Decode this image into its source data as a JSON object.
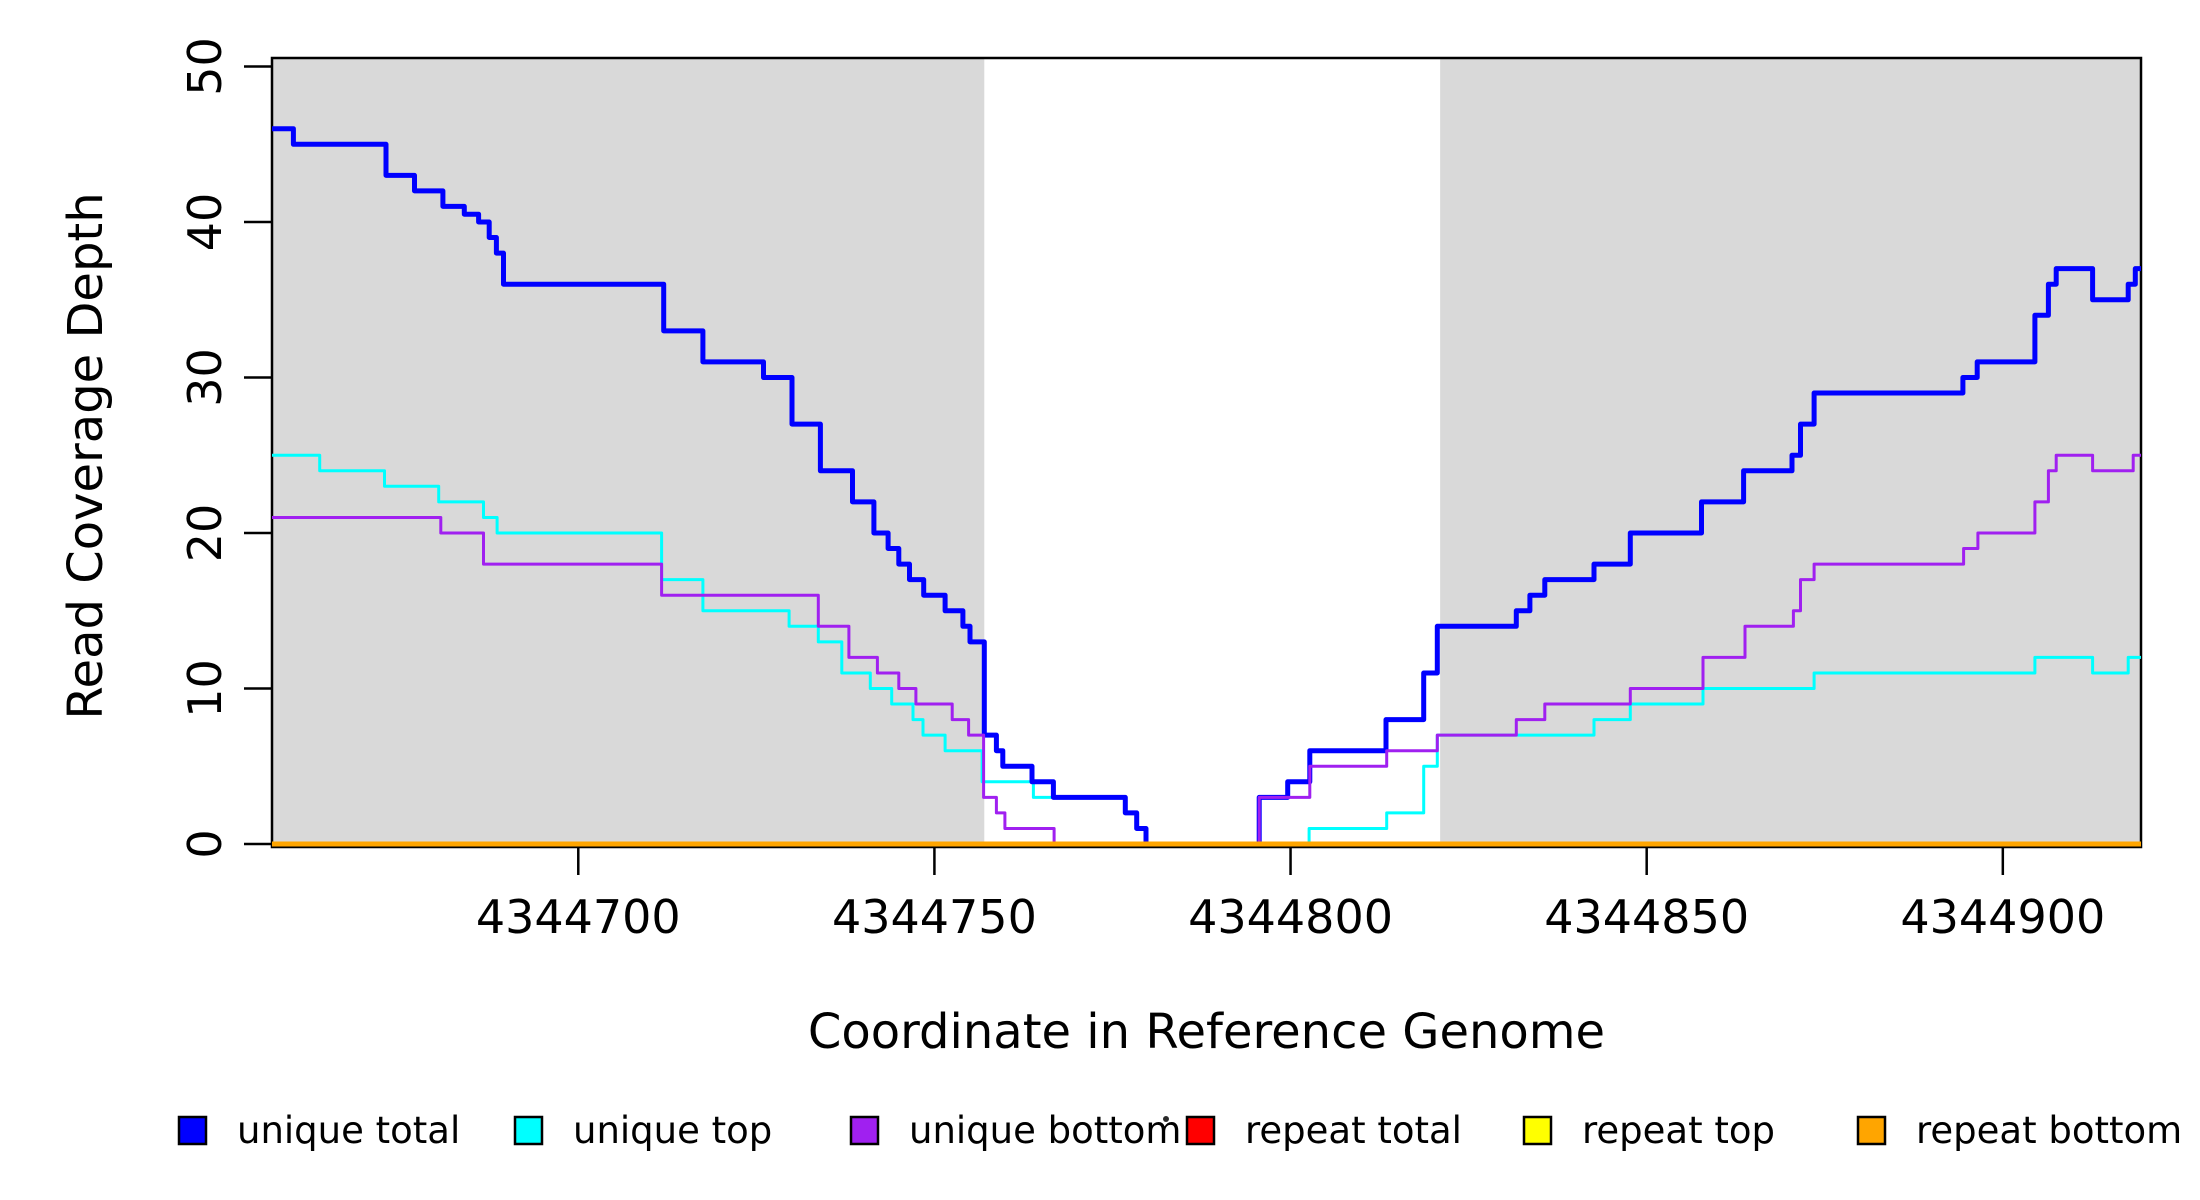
{
  "chart_data": {
    "type": "line",
    "step": true,
    "title": "",
    "xlabel": "Coordinate in Reference Genome",
    "ylabel": "Read Coverage Depth",
    "xlim": [
      4344657,
      4344919.4
    ],
    "ylim": [
      0,
      50.5
    ],
    "xticks": [
      4344700,
      4344750,
      4344800,
      4344850,
      4344900
    ],
    "yticks": [
      0,
      10,
      20,
      30,
      40,
      50
    ],
    "grid": false,
    "legend_position": "bottom",
    "background_color": "#ffffff",
    "shaded_regions": {
      "color": "#d9d9d9",
      "meaning": "repeat-flanked reference intervals",
      "ranges": [
        [
          4344657,
          4344757
        ],
        [
          4344821,
          4344919.4
        ]
      ]
    },
    "series": [
      {
        "name": "unique top",
        "color": "#00ffff",
        "line_width": 3,
        "points": [
          [
            4344657,
            25
          ],
          [
            4344663.7,
            24
          ],
          [
            4344672.8,
            23
          ],
          [
            4344680.4,
            22
          ],
          [
            4344686.7,
            21
          ],
          [
            4344688.6,
            20
          ],
          [
            4344711.7,
            17
          ],
          [
            4344717.5,
            15
          ],
          [
            4344729.6,
            14
          ],
          [
            4344733.7,
            13
          ],
          [
            4344737,
            11
          ],
          [
            4344741,
            10
          ],
          [
            4344744,
            9
          ],
          [
            4344747,
            8
          ],
          [
            4344748.4,
            7
          ],
          [
            4344751.5,
            6
          ],
          [
            4344756.7,
            4
          ],
          [
            4344763.9,
            3
          ],
          [
            4344776.8,
            2
          ],
          [
            4344778.4,
            1
          ],
          [
            4344779.7,
            0
          ],
          [
            4344802.6,
            1
          ],
          [
            4344813.5,
            2
          ],
          [
            4344818.7,
            5
          ],
          [
            4344820.6,
            7
          ],
          [
            4344842.6,
            8
          ],
          [
            4344847.7,
            9
          ],
          [
            4344857.9,
            10
          ],
          [
            4344873.5,
            11
          ],
          [
            4344904.5,
            12
          ],
          [
            4344912.6,
            11
          ],
          [
            4344917.6,
            12
          ]
        ]
      },
      {
        "name": "unique total",
        "color": "#0000ff",
        "line_width": 5,
        "points": [
          [
            4344657,
            46
          ],
          [
            4344660,
            45
          ],
          [
            4344673,
            43
          ],
          [
            4344677,
            42
          ],
          [
            4344681,
            41
          ],
          [
            4344684,
            40.5
          ],
          [
            4344686,
            40
          ],
          [
            4344687.5,
            39
          ],
          [
            4344688.5,
            38
          ],
          [
            4344689.5,
            36
          ],
          [
            4344712,
            33
          ],
          [
            4344717.5,
            31
          ],
          [
            4344726,
            30
          ],
          [
            4344730,
            27
          ],
          [
            4344734,
            24
          ],
          [
            4344738.5,
            22
          ],
          [
            4344741.5,
            20
          ],
          [
            4344743.5,
            19
          ],
          [
            4344745,
            18
          ],
          [
            4344746.5,
            17
          ],
          [
            4344748.5,
            16
          ],
          [
            4344751.5,
            15
          ],
          [
            4344754,
            14
          ],
          [
            4344755,
            13
          ],
          [
            4344757,
            7
          ],
          [
            4344758.7,
            6
          ],
          [
            4344759.6,
            5
          ],
          [
            4344763.7,
            4
          ],
          [
            4344766.7,
            3
          ],
          [
            4344776.8,
            2
          ],
          [
            4344778.4,
            1
          ],
          [
            4344779.7,
            0
          ],
          [
            4344795.6,
            3
          ],
          [
            4344799.6,
            4
          ],
          [
            4344802.7,
            6
          ],
          [
            4344813.4,
            8
          ],
          [
            4344818.7,
            11
          ],
          [
            4344820.6,
            14
          ],
          [
            4344831.7,
            15
          ],
          [
            4344833.6,
            16
          ],
          [
            4344835.7,
            17
          ],
          [
            4344842.6,
            18
          ],
          [
            4344847.7,
            20
          ],
          [
            4344857.7,
            22
          ],
          [
            4344863.6,
            24
          ],
          [
            4344870.4,
            25
          ],
          [
            4344871.6,
            27
          ],
          [
            4344873.5,
            29
          ],
          [
            4344894.4,
            30
          ],
          [
            4344896.4,
            31
          ],
          [
            4344904.5,
            34
          ],
          [
            4344906.4,
            36
          ],
          [
            4344907.5,
            37
          ],
          [
            4344912.6,
            35
          ],
          [
            4344917.6,
            36
          ],
          [
            4344918.6,
            37
          ]
        ]
      },
      {
        "name": "unique bottom",
        "color": "#a020f0",
        "line_width": 3,
        "points": [
          [
            4344657,
            21
          ],
          [
            4344680.7,
            20
          ],
          [
            4344686.7,
            18
          ],
          [
            4344711.7,
            16
          ],
          [
            4344733.7,
            14
          ],
          [
            4344738,
            12
          ],
          [
            4344742,
            11
          ],
          [
            4344745,
            10
          ],
          [
            4344747.4,
            9
          ],
          [
            4344752.5,
            8
          ],
          [
            4344754.8,
            7
          ],
          [
            4344756.9,
            3
          ],
          [
            4344758.7,
            2
          ],
          [
            4344759.9,
            1
          ],
          [
            4344766.8,
            0
          ],
          [
            4344795.6,
            3
          ],
          [
            4344802.7,
            5
          ],
          [
            4344813.5,
            6
          ],
          [
            4344820.6,
            7
          ],
          [
            4344831.7,
            8
          ],
          [
            4344835.7,
            9
          ],
          [
            4344847.7,
            10
          ],
          [
            4344857.9,
            12
          ],
          [
            4344863.8,
            14
          ],
          [
            4344870.6,
            15
          ],
          [
            4344871.6,
            17
          ],
          [
            4344873.5,
            18
          ],
          [
            4344894.5,
            19
          ],
          [
            4344896.5,
            20
          ],
          [
            4344904.5,
            22
          ],
          [
            4344906.4,
            24
          ],
          [
            4344907.5,
            25
          ],
          [
            4344912.6,
            24
          ],
          [
            4344918.3,
            25
          ]
        ]
      },
      {
        "name": "repeat total",
        "color": "#ff0000",
        "line_width": 5,
        "points": [
          [
            4344657,
            0
          ]
        ]
      },
      {
        "name": "repeat top",
        "color": "#ffff00",
        "line_width": 4,
        "points": [
          [
            4344657,
            0
          ]
        ]
      },
      {
        "name": "repeat bottom",
        "color": "#ffa500",
        "line_width": 5,
        "points": [
          [
            4344657,
            0
          ]
        ]
      }
    ]
  },
  "legend": {
    "items": [
      {
        "label": "unique total",
        "color": "#0000ff"
      },
      {
        "label": "unique top",
        "color": "#00ffff"
      },
      {
        "label": "unique bottom",
        "color": "#a020f0"
      },
      {
        "label": "repeat total",
        "color": "#ff0000"
      },
      {
        "label": "repeat top",
        "color": "#ffff00"
      },
      {
        "label": "repeat bottom",
        "color": "#ffa500"
      }
    ],
    "swatch_border_color": "#000000"
  },
  "artifacts": {
    "stray_mark": "."
  }
}
